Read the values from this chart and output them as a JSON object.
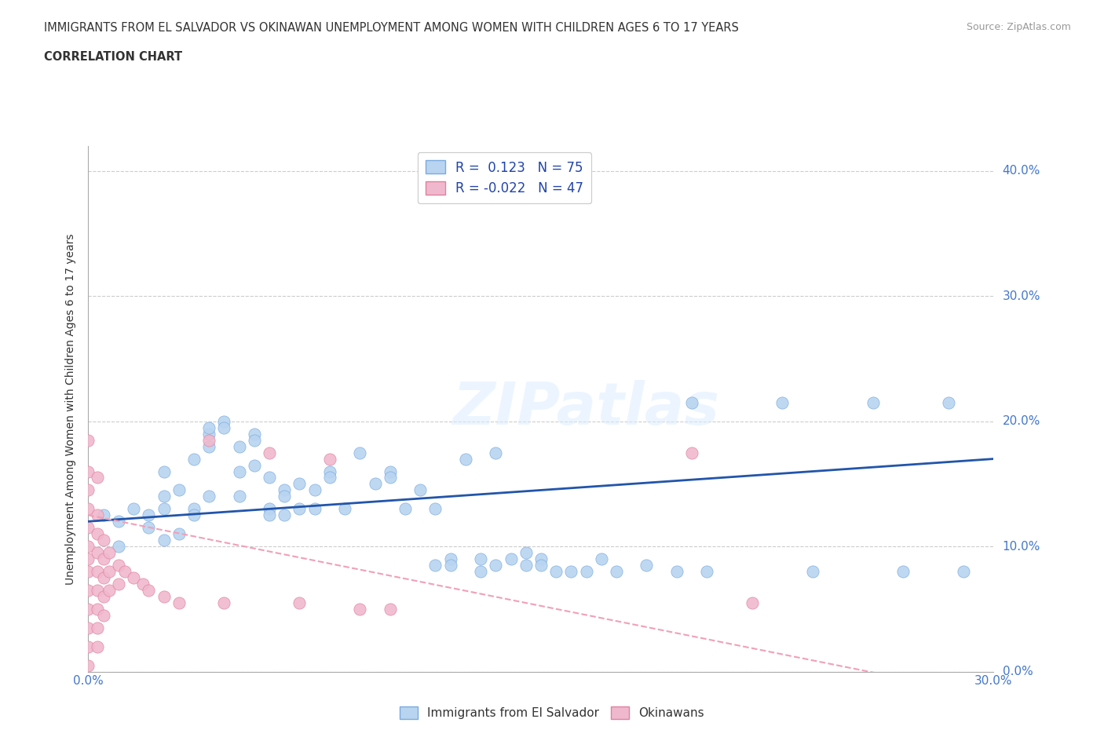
{
  "title_line1": "IMMIGRANTS FROM EL SALVADOR VS OKINAWAN UNEMPLOYMENT AMONG WOMEN WITH CHILDREN AGES 6 TO 17 YEARS",
  "title_line2": "CORRELATION CHART",
  "source_text": "Source: ZipAtlas.com",
  "ylabel": "Unemployment Among Women with Children Ages 6 to 17 years",
  "xlim": [
    0.0,
    0.3
  ],
  "ylim": [
    0.0,
    0.42
  ],
  "yticks": [
    0.0,
    0.1,
    0.2,
    0.3,
    0.4
  ],
  "ytick_labels": [
    "0.0%",
    "10.0%",
    "20.0%",
    "30.0%",
    "40.0%"
  ],
  "xtick_positions": [
    0.0,
    0.05,
    0.1,
    0.15,
    0.2,
    0.25,
    0.3
  ],
  "xtick_labels": [
    "0.0%",
    "",
    "",
    "",
    "",
    "",
    "30.0%"
  ],
  "legend_r1": "R =  0.123   N = 75",
  "legend_r2": "R = -0.022   N = 47",
  "blue_color": "#b8d4f0",
  "pink_color": "#f0b8cc",
  "trend_blue_color": "#2255aa",
  "trend_pink_color": "#f0a0b8",
  "blue_scatter": [
    [
      0.005,
      0.125
    ],
    [
      0.01,
      0.12
    ],
    [
      0.01,
      0.1
    ],
    [
      0.015,
      0.13
    ],
    [
      0.02,
      0.125
    ],
    [
      0.02,
      0.115
    ],
    [
      0.025,
      0.14
    ],
    [
      0.025,
      0.16
    ],
    [
      0.025,
      0.13
    ],
    [
      0.025,
      0.105
    ],
    [
      0.03,
      0.145
    ],
    [
      0.03,
      0.11
    ],
    [
      0.035,
      0.13
    ],
    [
      0.035,
      0.17
    ],
    [
      0.035,
      0.125
    ],
    [
      0.04,
      0.19
    ],
    [
      0.04,
      0.18
    ],
    [
      0.04,
      0.195
    ],
    [
      0.04,
      0.14
    ],
    [
      0.045,
      0.2
    ],
    [
      0.045,
      0.195
    ],
    [
      0.05,
      0.18
    ],
    [
      0.05,
      0.14
    ],
    [
      0.05,
      0.16
    ],
    [
      0.055,
      0.19
    ],
    [
      0.055,
      0.185
    ],
    [
      0.055,
      0.165
    ],
    [
      0.06,
      0.155
    ],
    [
      0.06,
      0.13
    ],
    [
      0.06,
      0.125
    ],
    [
      0.065,
      0.145
    ],
    [
      0.065,
      0.14
    ],
    [
      0.065,
      0.125
    ],
    [
      0.07,
      0.15
    ],
    [
      0.07,
      0.13
    ],
    [
      0.075,
      0.145
    ],
    [
      0.075,
      0.13
    ],
    [
      0.08,
      0.16
    ],
    [
      0.08,
      0.155
    ],
    [
      0.085,
      0.13
    ],
    [
      0.09,
      0.175
    ],
    [
      0.095,
      0.15
    ],
    [
      0.1,
      0.16
    ],
    [
      0.1,
      0.155
    ],
    [
      0.105,
      0.13
    ],
    [
      0.11,
      0.145
    ],
    [
      0.115,
      0.13
    ],
    [
      0.115,
      0.085
    ],
    [
      0.12,
      0.09
    ],
    [
      0.12,
      0.085
    ],
    [
      0.125,
      0.17
    ],
    [
      0.13,
      0.09
    ],
    [
      0.13,
      0.08
    ],
    [
      0.135,
      0.175
    ],
    [
      0.135,
      0.085
    ],
    [
      0.14,
      0.09
    ],
    [
      0.145,
      0.095
    ],
    [
      0.145,
      0.085
    ],
    [
      0.15,
      0.09
    ],
    [
      0.15,
      0.085
    ],
    [
      0.155,
      0.08
    ],
    [
      0.16,
      0.08
    ],
    [
      0.165,
      0.08
    ],
    [
      0.17,
      0.09
    ],
    [
      0.175,
      0.08
    ],
    [
      0.185,
      0.085
    ],
    [
      0.195,
      0.08
    ],
    [
      0.2,
      0.215
    ],
    [
      0.205,
      0.08
    ],
    [
      0.23,
      0.215
    ],
    [
      0.24,
      0.08
    ],
    [
      0.26,
      0.215
    ],
    [
      0.27,
      0.08
    ],
    [
      0.285,
      0.215
    ],
    [
      0.29,
      0.08
    ]
  ],
  "pink_scatter": [
    [
      0.0,
      0.185
    ],
    [
      0.0,
      0.16
    ],
    [
      0.0,
      0.145
    ],
    [
      0.0,
      0.13
    ],
    [
      0.0,
      0.115
    ],
    [
      0.0,
      0.1
    ],
    [
      0.0,
      0.09
    ],
    [
      0.0,
      0.08
    ],
    [
      0.0,
      0.065
    ],
    [
      0.0,
      0.05
    ],
    [
      0.0,
      0.035
    ],
    [
      0.0,
      0.02
    ],
    [
      0.0,
      0.005
    ],
    [
      0.003,
      0.155
    ],
    [
      0.003,
      0.125
    ],
    [
      0.003,
      0.11
    ],
    [
      0.003,
      0.095
    ],
    [
      0.003,
      0.08
    ],
    [
      0.003,
      0.065
    ],
    [
      0.003,
      0.05
    ],
    [
      0.003,
      0.035
    ],
    [
      0.003,
      0.02
    ],
    [
      0.005,
      0.105
    ],
    [
      0.005,
      0.09
    ],
    [
      0.005,
      0.075
    ],
    [
      0.005,
      0.06
    ],
    [
      0.005,
      0.045
    ],
    [
      0.007,
      0.095
    ],
    [
      0.007,
      0.08
    ],
    [
      0.007,
      0.065
    ],
    [
      0.01,
      0.085
    ],
    [
      0.01,
      0.07
    ],
    [
      0.012,
      0.08
    ],
    [
      0.015,
      0.075
    ],
    [
      0.018,
      0.07
    ],
    [
      0.02,
      0.065
    ],
    [
      0.025,
      0.06
    ],
    [
      0.03,
      0.055
    ],
    [
      0.04,
      0.185
    ],
    [
      0.045,
      0.055
    ],
    [
      0.06,
      0.175
    ],
    [
      0.07,
      0.055
    ],
    [
      0.08,
      0.17
    ],
    [
      0.09,
      0.05
    ],
    [
      0.1,
      0.05
    ],
    [
      0.2,
      0.175
    ],
    [
      0.22,
      0.055
    ]
  ],
  "blue_trend": [
    0.0,
    0.3,
    0.12,
    0.17
  ],
  "pink_trend": [
    0.0,
    0.3,
    0.125,
    -0.02
  ]
}
